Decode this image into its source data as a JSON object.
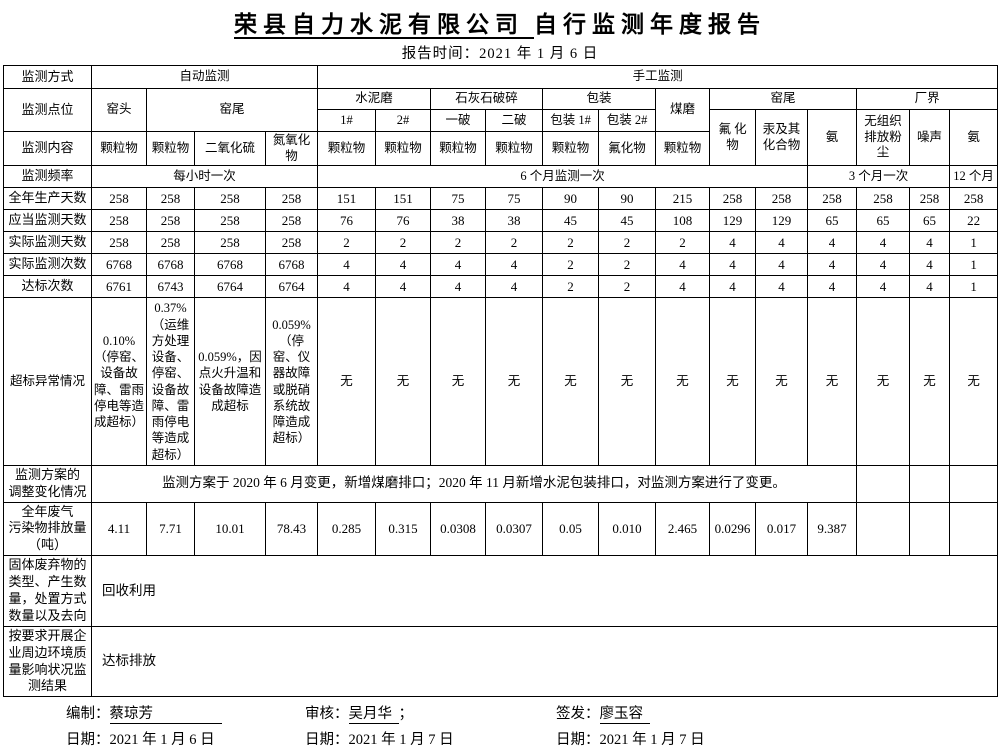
{
  "page": {
    "title_underlined": "荣县自力水泥有限公司",
    "title_rest": "自行监测年度报告",
    "report_time": "报告时间：2021 年 1 月 6 日"
  },
  "header": {
    "method_label": "监测方式",
    "auto": "自动监测",
    "manual": "手工监测",
    "point_label": "监测点位",
    "kiln_head": "窑头",
    "kiln_tail_auto": "窑尾",
    "cement_mill": "水泥磨",
    "limestone_crush": "石灰石破碎",
    "packing": "包装",
    "coal_mill": "煤磨",
    "kiln_tail_manual": "窑尾",
    "boundary": "厂界",
    "sub": [
      "1#",
      "2#",
      "一破",
      "二破",
      "包装 1#",
      "包装 2#"
    ],
    "manual_params": [
      "氟 化 物",
      "汞及其化合物",
      "氨",
      "无组织排放粉尘",
      "噪声",
      "氨"
    ],
    "content_label": "监测内容",
    "contents": [
      "颗粒物",
      "颗粒物",
      "二氧化硫",
      "氮氧化物",
      "颗粒物",
      "颗粒物",
      "颗粒物",
      "颗粒物",
      "颗粒物",
      "氟化物",
      "颗粒物"
    ],
    "freq_label": "监测频率",
    "freq_hourly": "每小时一次",
    "freq_6m": "6 个月监测一次",
    "freq_3m": "3 个月一次",
    "freq_12m": "12 个月"
  },
  "rows": {
    "production_days": {
      "label": "全年生产天数",
      "values": [
        "258",
        "258",
        "258",
        "258",
        "151",
        "151",
        "75",
        "75",
        "90",
        "90",
        "215",
        "258",
        "258",
        "258",
        "258",
        "258",
        "258"
      ]
    },
    "required_days": {
      "label": "应当监测天数",
      "values": [
        "258",
        "258",
        "258",
        "258",
        "76",
        "76",
        "38",
        "38",
        "45",
        "45",
        "108",
        "129",
        "129",
        "65",
        "65",
        "65",
        "22"
      ]
    },
    "actual_days": {
      "label": "实际监测天数",
      "values": [
        "258",
        "258",
        "258",
        "258",
        "2",
        "2",
        "2",
        "2",
        "2",
        "2",
        "2",
        "4",
        "4",
        "4",
        "4",
        "4",
        "1"
      ]
    },
    "actual_times": {
      "label": "实际监测次数",
      "values": [
        "6768",
        "6768",
        "6768",
        "6768",
        "4",
        "4",
        "4",
        "4",
        "2",
        "2",
        "4",
        "4",
        "4",
        "4",
        "4",
        "4",
        "1"
      ]
    },
    "compliance_times": {
      "label": "达标次数",
      "values": [
        "6761",
        "6743",
        "6764",
        "6764",
        "4",
        "4",
        "4",
        "4",
        "2",
        "2",
        "4",
        "4",
        "4",
        "4",
        "4",
        "4",
        "1"
      ]
    },
    "exceed": {
      "label": "超标异常情况",
      "values": [
        "0.10%（停窑、设备故障、雷雨停电等造成超标）",
        "0.37%（运维方处理设备、停窑、设备故障、雷雨停电等造成超标）",
        "0.059%，因点火升温和设备故障造成超标",
        "0.059%（停窑、仪器故障或脱硝系统故障造成超标）",
        "无",
        "无",
        "无",
        "无",
        "无",
        "无",
        "无",
        "无",
        "无",
        "无",
        "无",
        "无",
        "无"
      ]
    },
    "plan_change": {
      "label": "监测方案的\n调整变化情况",
      "text": "监测方案于 2020 年 6 月变更，新增煤磨排口；2020 年 11 月新增水泥包装排口，对监测方案进行了变更。",
      "empty": [
        "",
        "",
        ""
      ]
    },
    "emission": {
      "label": "全年废气\n污染物排放量\n（吨）",
      "values": [
        "4.11",
        "7.71",
        "10.01",
        "78.43",
        "0.285",
        "0.315",
        "0.0308",
        "0.0307",
        "0.05",
        "0.010",
        "2.465",
        "0.0296",
        "0.017",
        "9.387",
        "",
        "",
        ""
      ]
    },
    "solid_waste": {
      "label": "固体废弃物的\n类型、产生数\n量，处置方式\n数量以及去向",
      "value": "回收利用"
    },
    "surrounding": {
      "label": "按要求开展企\n业周边环境质\n量影响状况监\n测结果",
      "value": "达标排放"
    }
  },
  "footer": {
    "prepared_label": "编制：",
    "prepared_name": "蔡琼芳",
    "reviewed_label": "审核：",
    "reviewed_name": "吴月华",
    "reviewed_suffix": "；",
    "issued_label": "签发：",
    "issued_name": "廖玉容",
    "date1": "日期：2021 年 1 月 6 日",
    "date2": "日期：2021 年 1 月 7 日",
    "date3": "日期：2021 年 1 月 7 日"
  }
}
